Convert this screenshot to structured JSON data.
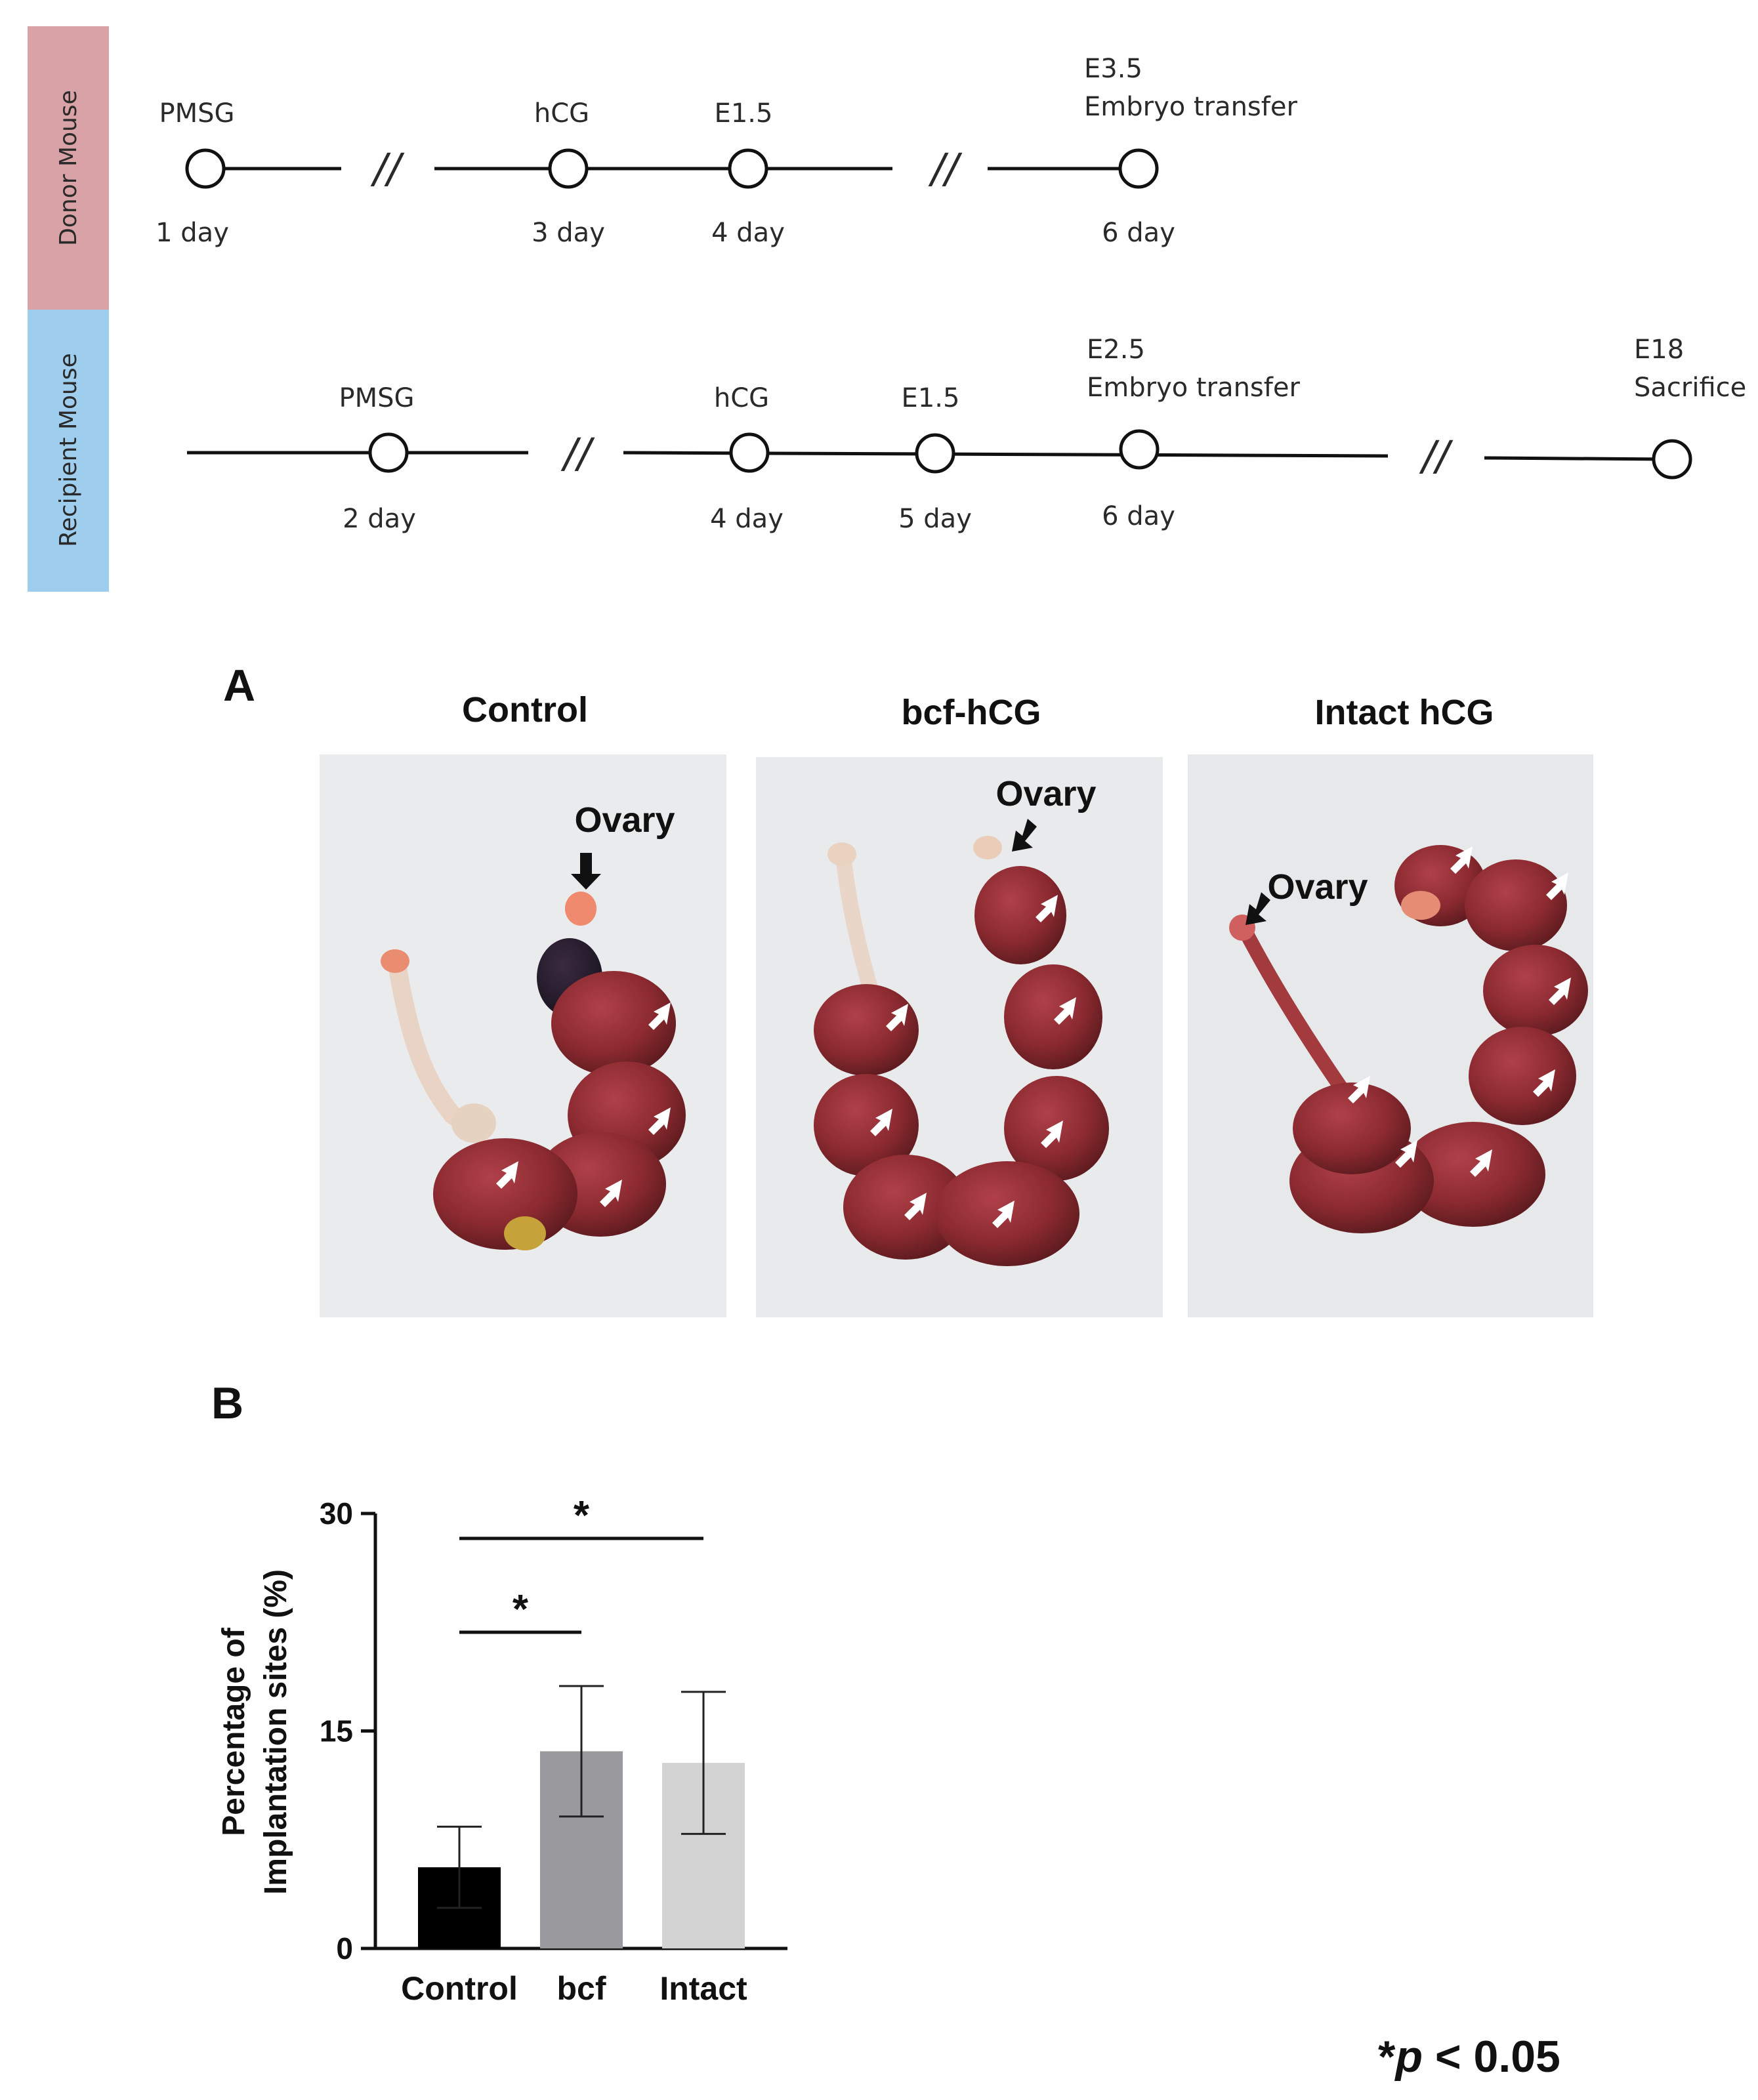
{
  "timeline": {
    "donor": {
      "label": "Donor Mouse",
      "color": "#d9a2a7",
      "points": [
        {
          "top": "PMSG",
          "bottom": "1 day"
        },
        {
          "top": "hCG",
          "bottom": "3 day"
        },
        {
          "top": "E1.5",
          "bottom": "4 day"
        },
        {
          "top": "E3.5",
          "top2": "Embryo transfer",
          "bottom": "6 day"
        }
      ]
    },
    "recipient": {
      "label": "Recipient Mouse",
      "color": "#9fcdee",
      "points": [
        {
          "top": "PMSG",
          "bottom": "2 day"
        },
        {
          "top": "hCG",
          "bottom": "4 day"
        },
        {
          "top": "E1.5",
          "bottom": "5 day"
        },
        {
          "top": "E2.5",
          "top2": "Embryo transfer",
          "bottom": "6 day"
        },
        {
          "top": "E18",
          "top2": "Sacrifice",
          "bottom": ""
        }
      ]
    },
    "break_mark": "//"
  },
  "panel_a": {
    "letter": "A",
    "photos": [
      {
        "title": "Control",
        "ovary_label": "Ovary"
      },
      {
        "title": "bcf-hCG",
        "ovary_label": "Ovary"
      },
      {
        "title": "Intact hCG",
        "ovary_label": "Ovary"
      }
    ],
    "tissue_color": "#8b2a30",
    "background_color": "#e9ebec"
  },
  "panel_b": {
    "letter": "B",
    "p_note_star": "*",
    "p_note_p": "p",
    "p_note_rest": " < 0.05"
  },
  "chart_data": {
    "type": "bar",
    "title": "",
    "xlabel": "",
    "ylabel_line1": "Percentage of",
    "ylabel_line2": "Implantation sites (%)",
    "categories": [
      "Control",
      "bcf",
      "Intact"
    ],
    "values": [
      5.6,
      13.6,
      12.8
    ],
    "errors": [
      2.8,
      4.5,
      4.9
    ],
    "colors": [
      "#000000",
      "#9a9a9e",
      "#d3d3d3"
    ],
    "ylim": [
      0,
      30
    ],
    "yticks": [
      "0",
      "15",
      "30"
    ],
    "significance": [
      {
        "from": 0,
        "to": 1,
        "label": "*"
      },
      {
        "from": 0,
        "to": 2,
        "label": "*"
      }
    ],
    "grid": false
  }
}
